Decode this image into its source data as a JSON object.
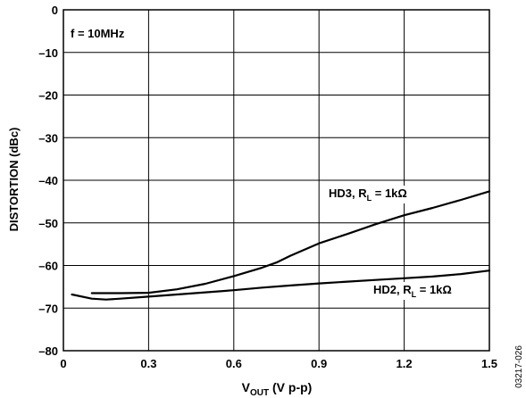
{
  "chart_data": {
    "type": "line",
    "annotation": "f = 10MHz",
    "xlabel": {
      "main": "V",
      "sub": "OUT",
      "rest": " (V p-p)"
    },
    "ylabel": "DISTORTION (dBc)",
    "xlim": [
      0,
      1.5
    ],
    "ylim": [
      -80,
      0
    ],
    "x_ticks": [
      "0",
      "0.3",
      "0.6",
      "0.9",
      "1.2",
      "1.5"
    ],
    "y_ticks": [
      "0",
      "–10",
      "–20",
      "–30",
      "–40",
      "–50",
      "–60",
      "–70",
      "–80"
    ],
    "grid": true,
    "series": [
      {
        "name": "HD3, R_L = 1kΩ",
        "label": {
          "pre": "HD3, R",
          "sub": "L",
          "post": " = 1kΩ"
        },
        "x": [
          0.1,
          0.2,
          0.3,
          0.4,
          0.5,
          0.6,
          0.7,
          0.75,
          0.8,
          0.9,
          1.0,
          1.1,
          1.2,
          1.3,
          1.4,
          1.5
        ],
        "y": [
          -66.5,
          -66.5,
          -66.4,
          -65.6,
          -64.3,
          -62.5,
          -60.5,
          -59.3,
          -57.7,
          -54.8,
          -52.6,
          -50.3,
          -48.2,
          -46.5,
          -44.6,
          -42.6
        ]
      },
      {
        "name": "HD2, R_L = 1kΩ",
        "label": {
          "pre": "HD2, R",
          "sub": "L",
          "post": " = 1kΩ"
        },
        "x": [
          0.03,
          0.1,
          0.15,
          0.2,
          0.3,
          0.4,
          0.5,
          0.6,
          0.7,
          0.8,
          0.9,
          1.0,
          1.1,
          1.2,
          1.3,
          1.4,
          1.5
        ],
        "y": [
          -66.8,
          -67.8,
          -68.0,
          -67.8,
          -67.3,
          -66.8,
          -66.3,
          -65.8,
          -65.2,
          -64.7,
          -64.2,
          -63.8,
          -63.4,
          -63.0,
          -62.6,
          -62.0,
          -61.2
        ]
      }
    ]
  },
  "footnote": "03217-026"
}
